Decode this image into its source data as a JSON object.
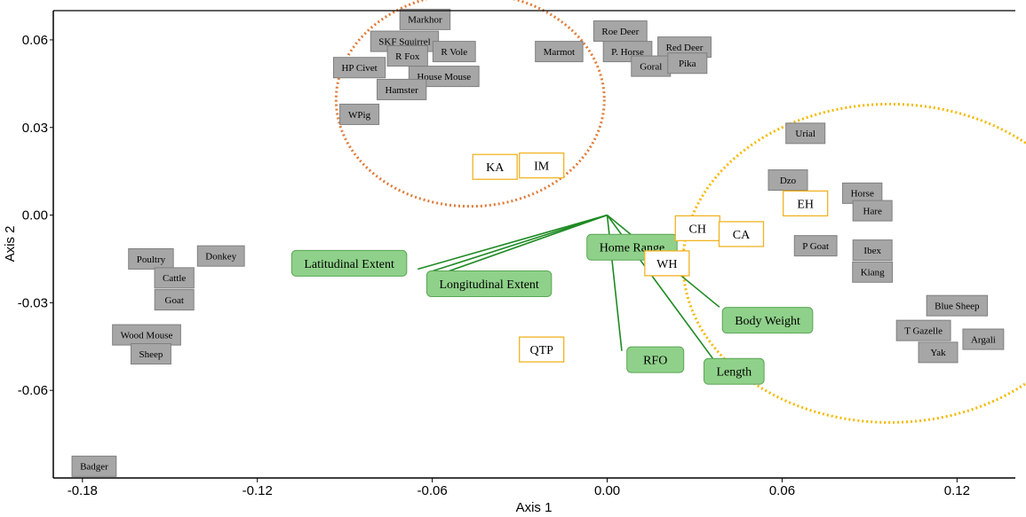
{
  "chart_data": {
    "type": "scatter",
    "xlabel": "Axis 1",
    "ylabel": "Axis 2",
    "xlim": [
      -0.19,
      0.14
    ],
    "ylim": [
      -0.09,
      0.07
    ],
    "x_ticks": [
      -0.18,
      -0.12,
      -0.06,
      0.0,
      0.06,
      0.12
    ],
    "x_tick_labels": [
      "-0.18",
      "-0.12",
      "-0.06",
      "0.00",
      "0.06",
      "0.12"
    ],
    "y_ticks": [
      -0.06,
      -0.03,
      0.0,
      0.03,
      0.06
    ],
    "y_tick_labels": [
      "-0.06",
      "-0.03",
      "0.00",
      "0.03",
      "0.06"
    ],
    "grid": false,
    "colors": {
      "species_fill": "#a6a6a6",
      "species_border": "#7f7f7f",
      "site_border": "#f0b323",
      "variable_fill": "#8fd18a",
      "variable_border": "#5aa655",
      "arrow": "#1e8a23",
      "ellipse_orange": "#e07b39",
      "ellipse_yellow": "#f5b800"
    },
    "species": [
      {
        "label": "Markhor",
        "x": -0.0625,
        "y": 0.067
      },
      {
        "label": "SKF Squirrel",
        "x": -0.0695,
        "y": 0.0595
      },
      {
        "label": "R Vole",
        "x": -0.0525,
        "y": 0.056
      },
      {
        "label": "R Fox",
        "x": -0.0685,
        "y": 0.0545
      },
      {
        "label": "HP Civet",
        "x": -0.085,
        "y": 0.0505
      },
      {
        "label": "House Mouse",
        "x": -0.056,
        "y": 0.0475
      },
      {
        "label": "Hamster",
        "x": -0.0705,
        "y": 0.043
      },
      {
        "label": "WPig",
        "x": -0.085,
        "y": 0.0345
      },
      {
        "label": "Roe Deer",
        "x": 0.0045,
        "y": 0.063
      },
      {
        "label": "Marmot",
        "x": -0.0165,
        "y": 0.056
      },
      {
        "label": "P. Horse",
        "x": 0.007,
        "y": 0.056
      },
      {
        "label": "Red Deer",
        "x": 0.0265,
        "y": 0.0575
      },
      {
        "label": "Goral",
        "x": 0.015,
        "y": 0.051
      },
      {
        "label": "Pika",
        "x": 0.0275,
        "y": 0.052
      },
      {
        "label": "Urial",
        "x": 0.068,
        "y": 0.028
      },
      {
        "label": "Dzo",
        "x": 0.062,
        "y": 0.012
      },
      {
        "label": "Horse",
        "x": 0.0875,
        "y": 0.0075
      },
      {
        "label": "Hare",
        "x": 0.091,
        "y": 0.0015
      },
      {
        "label": "P Goat",
        "x": 0.0715,
        "y": -0.0105
      },
      {
        "label": "Ibex",
        "x": 0.091,
        "y": -0.012
      },
      {
        "label": "Kiang",
        "x": 0.091,
        "y": -0.0195
      },
      {
        "label": "Blue Sheep",
        "x": 0.12,
        "y": -0.031
      },
      {
        "label": "T Gazelle",
        "x": 0.1085,
        "y": -0.0395
      },
      {
        "label": "Argali",
        "x": 0.129,
        "y": -0.0425
      },
      {
        "label": "Yak",
        "x": 0.1135,
        "y": -0.047
      },
      {
        "label": "Poultry",
        "x": -0.1565,
        "y": -0.015
      },
      {
        "label": "Donkey",
        "x": -0.1325,
        "y": -0.014
      },
      {
        "label": "Cattle",
        "x": -0.1485,
        "y": -0.0215
      },
      {
        "label": "Goat",
        "x": -0.1485,
        "y": -0.029
      },
      {
        "label": "Wood Mouse",
        "x": -0.158,
        "y": -0.041
      },
      {
        "label": "Sheep",
        "x": -0.1565,
        "y": -0.0475
      },
      {
        "label": "Badger",
        "x": -0.176,
        "y": -0.086
      }
    ],
    "sites": [
      {
        "label": "KA",
        "x": -0.0385,
        "y": 0.0165
      },
      {
        "label": "IM",
        "x": -0.0225,
        "y": 0.017
      },
      {
        "label": "CH",
        "x": 0.031,
        "y": -0.0045
      },
      {
        "label": "CA",
        "x": 0.046,
        "y": -0.0065
      },
      {
        "label": "EH",
        "x": 0.068,
        "y": 0.004
      },
      {
        "label": "WH",
        "x": 0.0205,
        "y": -0.0165
      },
      {
        "label": "QTP",
        "x": -0.0225,
        "y": -0.046
      }
    ],
    "variables": [
      {
        "label": "Latitudinal Extent",
        "x": -0.0885,
        "y": -0.0165
      },
      {
        "label": "Longitudinal Extent",
        "x": -0.0405,
        "y": -0.0235
      },
      {
        "label": "Home Range",
        "x": 0.0085,
        "y": -0.011
      },
      {
        "label": "Body Weight",
        "x": 0.055,
        "y": -0.036
      },
      {
        "label": "RFO",
        "x": 0.0165,
        "y": -0.0495
      },
      {
        "label": "Length",
        "x": 0.0435,
        "y": -0.0535
      }
    ],
    "vectors": [
      {
        "x": -0.065,
        "y": -0.0185
      },
      {
        "x": -0.061,
        "y": -0.0195
      },
      {
        "x": -0.0595,
        "y": -0.021
      },
      {
        "x": 0.005,
        "y": -0.0465
      },
      {
        "x": 0.038,
        "y": -0.0515
      },
      {
        "x": 0.0385,
        "y": -0.0315
      }
    ],
    "vector_origin": {
      "x": 0.0,
      "y": 0.0
    },
    "ellipses": [
      {
        "cx": -0.047,
        "cy": 0.0395,
        "rx": 0.046,
        "ry": 0.0365,
        "color": "orange"
      },
      {
        "cx": 0.097,
        "cy": -0.0165,
        "rx": 0.071,
        "ry": 0.0545,
        "color": "yellow"
      }
    ]
  }
}
